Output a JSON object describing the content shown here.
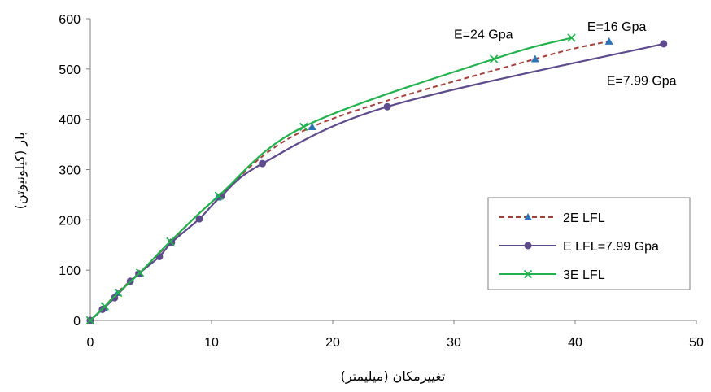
{
  "chart_data": {
    "type": "line",
    "xlabel": "تغییرمکان (میلیمتر)",
    "ylabel": "بار (کیلونیوتن)",
    "xlim": [
      0,
      50
    ],
    "ylim": [
      0,
      600
    ],
    "x_ticks": [
      "0",
      "10",
      "20",
      "30",
      "40",
      "50"
    ],
    "y_ticks": [
      "0",
      "100",
      "200",
      "300",
      "400",
      "500",
      "600"
    ],
    "grid": false,
    "legend_position": "bottom-right",
    "series": [
      {
        "name": "2E LFL",
        "style": "dashed",
        "marker": "triangle",
        "color": "#A0413C",
        "marker_color": "#2E75B6",
        "x": [
          0,
          1.1,
          2.2,
          4.0,
          6.6,
          10.5,
          18.3,
          36.7,
          42.8
        ],
        "y": [
          0,
          25,
          55,
          93,
          155,
          245,
          385,
          520,
          555
        ]
      },
      {
        "name": "E LFL=7.99 Gpa",
        "style": "solid",
        "marker": "circle",
        "color": "#5E4B8B",
        "marker_color": "#5E4B8B",
        "x": [
          0,
          1.0,
          2.0,
          3.3,
          4.0,
          5.7,
          6.7,
          9.0,
          10.8,
          14.2,
          24.5,
          47.3
        ],
        "y": [
          0,
          22,
          45,
          78,
          93,
          127,
          155,
          202,
          247,
          312,
          425,
          550
        ]
      },
      {
        "name": "3E LFL",
        "style": "solid",
        "marker": "x",
        "color": "#22B14C",
        "marker_color": "#22B14C",
        "x": [
          0,
          1.2,
          2.3,
          4.1,
          6.6,
          10.6,
          17.6,
          33.3,
          39.7
        ],
        "y": [
          0,
          28,
          55,
          95,
          157,
          248,
          385,
          520,
          562
        ]
      }
    ],
    "annotations": [
      {
        "text": "E=24 Gpa",
        "x": 30.0,
        "y": 560
      },
      {
        "text": "E=16 Gpa",
        "x": 41.0,
        "y": 576
      },
      {
        "text": "E=7.99 Gpa",
        "x": 42.6,
        "y": 468
      }
    ]
  }
}
